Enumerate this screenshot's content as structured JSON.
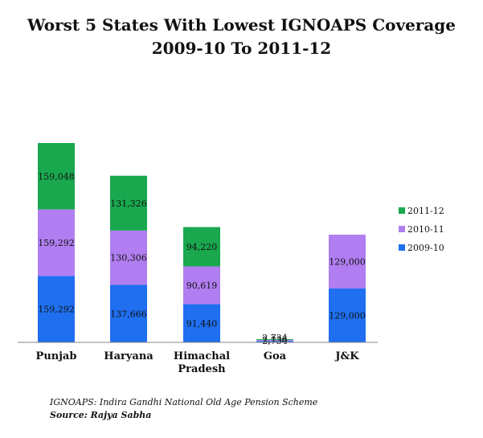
{
  "chart_data": {
    "type": "bar",
    "stacked": true,
    "title": "Worst 5 States With Lowest IGNOAPS Coverage",
    "subtitle": "2009-10 To 2011-12",
    "categories": [
      "Punjab",
      "Haryana",
      "Himachal Pradesh",
      "Goa",
      "J&K"
    ],
    "series": [
      {
        "name": "2009-10",
        "color": "#1f6ff0",
        "values": [
          159292,
          137666,
          91440,
          2734,
          129000
        ],
        "labels": [
          "159,292",
          "137,666",
          "91,440",
          "2,734",
          "129,000"
        ]
      },
      {
        "name": "2010-11",
        "color": "#b07ef0",
        "values": [
          159292,
          130306,
          90619,
          2734,
          129000
        ],
        "labels": [
          "159,292",
          "130,306",
          "90,619",
          "2,734",
          "129,000"
        ]
      },
      {
        "name": "2011-12",
        "color": "#19a84e",
        "values": [
          159048,
          131326,
          94220,
          2136,
          null
        ],
        "labels": [
          "159,048",
          "131,326",
          "94,220",
          "2,136",
          ""
        ]
      }
    ],
    "legend_position": "right",
    "grid": false
  },
  "footer": {
    "note": "IGNOAPS: Indira Gandhi National Old Age Pension Scheme",
    "source": "Source: Rajya Sabha"
  }
}
